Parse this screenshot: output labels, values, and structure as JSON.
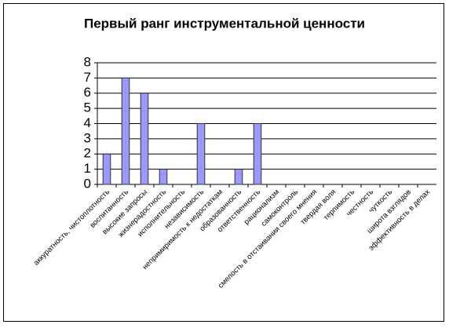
{
  "chart_data": {
    "type": "bar",
    "title": "Первый ранг инструментальной ценности",
    "categories": [
      "аккуратность, чистоплотность",
      "воспитанность",
      "высокие запросы",
      "жизнерадостность",
      "исполнительность",
      "независимость",
      "непримиримость к недостаткам",
      "образованность",
      "ответственность",
      "рационализм",
      "самоконтроль",
      "смелость в отстаивании своего мнения",
      "твердая воля",
      "терпимость",
      "честность",
      "чуткость",
      "широта взглядов",
      "эффективность в делах"
    ],
    "values": [
      2,
      7,
      6,
      1,
      0,
      4,
      0,
      1,
      4,
      0,
      0,
      0,
      0,
      0,
      0,
      0,
      0,
      0
    ],
    "color": "#9999ff",
    "ylim": [
      0,
      8
    ],
    "yticks": [
      0,
      1,
      2,
      3,
      4,
      5,
      6,
      7,
      8
    ],
    "grid": true
  }
}
